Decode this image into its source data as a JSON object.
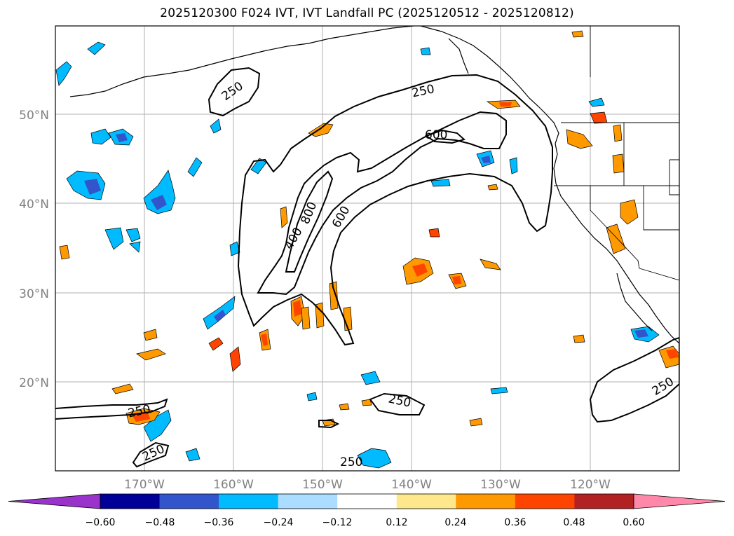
{
  "title": "2025120300 F024 IVT, IVT Landfall PC (2025120512 - 2025120812)",
  "lat_labels": [
    "50°N",
    "40°N",
    "30°N",
    "20°N"
  ],
  "lon_labels": [
    "170°W",
    "160°W",
    "150°W",
    "140°W",
    "130°W",
    "120°W"
  ],
  "contour_labels": [
    "250",
    "250",
    "600",
    "800",
    "600",
    "400",
    "250",
    "250",
    "250",
    "250",
    "250"
  ],
  "colorbar": {
    "ticks": [
      "−0.60",
      "−0.48",
      "−0.36",
      "−0.24",
      "−0.12",
      "0.12",
      "0.24",
      "0.36",
      "0.48",
      "0.60"
    ],
    "colors": [
      "#9933cc",
      "#000099",
      "#3355cc",
      "#00bbff",
      "#aaddff",
      "#ffffff",
      "#ffe88c",
      "#ff9900",
      "#ff4400",
      "#b22222",
      "#ff88aa"
    ]
  },
  "colors": {
    "neg_strong": "#3355cc",
    "neg_mid": "#00bbff",
    "pos_mid": "#ff9900",
    "pos_strong": "#ff4400",
    "grid": "#b0b0b0"
  }
}
